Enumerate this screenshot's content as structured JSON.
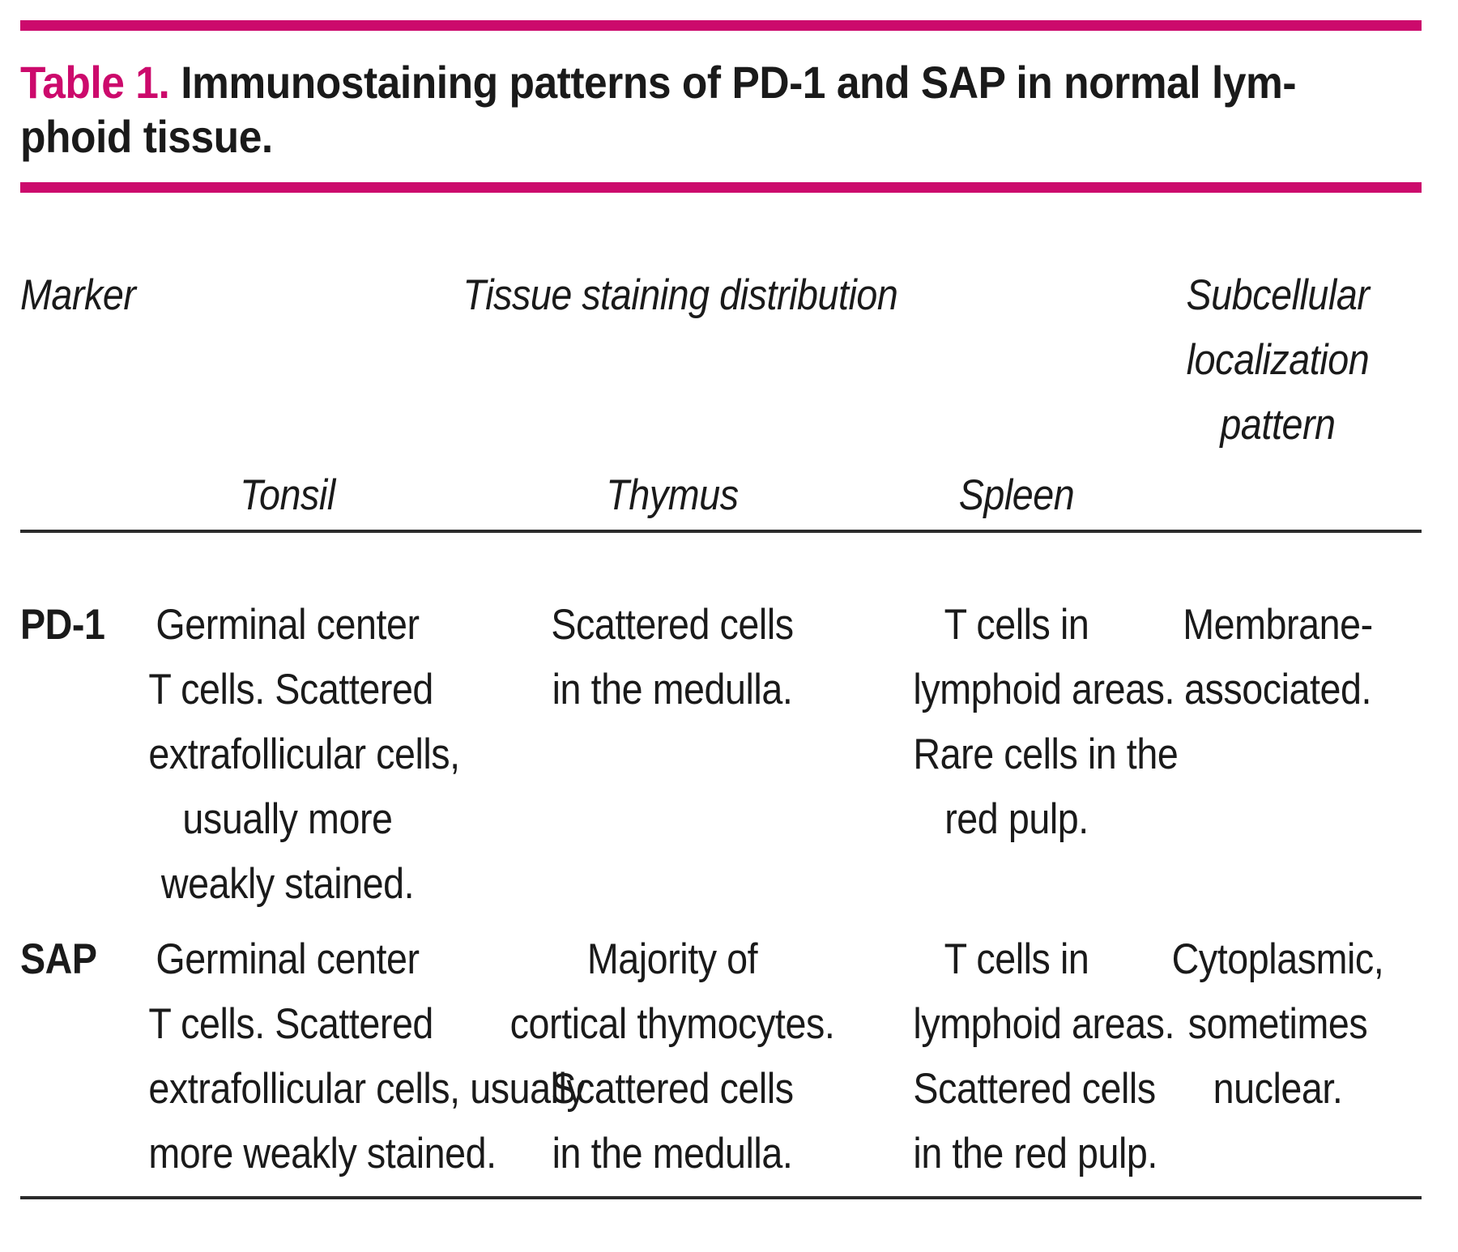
{
  "colors": {
    "accent_magenta": "#cc0a6c",
    "rule_black": "#2b2b2b",
    "text_black": "#1a1a1a"
  },
  "title": {
    "label": "Table 1.",
    "text": " Immunostaining patterns of PD-1 and SAP in normal lym-\nphoid tissue."
  },
  "header": {
    "marker": "Marker",
    "tissue_group": "Tissue staining distribution",
    "subcellular": "Subcellular\nlocalization\npattern",
    "tissue_columns": {
      "tonsil": "Tonsil",
      "thymus": "Thymus",
      "spleen": "Spleen"
    }
  },
  "rows": [
    {
      "marker": "PD-1",
      "tonsil": "Germinal center\nT cells. Scattered\nextrafollicular cells,\nusually more\nweakly stained.",
      "thymus": "Scattered cells\nin the medulla.",
      "spleen": "T cells in\nlymphoid areas.\nRare cells in the\nred pulp.",
      "subcellular": "Membrane-\nassociated."
    },
    {
      "marker": "SAP",
      "tonsil": "Germinal center\nT cells. Scattered\nextrafollicular cells, usually\nmore weakly stained.",
      "thymus": "Majority of\ncortical thymocytes.\nScattered cells\nin the medulla.",
      "spleen": "T cells in\nlymphoid areas.\nScattered cells\nin the red pulp.",
      "subcellular": "Cytoplasmic,\nsometimes\nnuclear."
    }
  ]
}
